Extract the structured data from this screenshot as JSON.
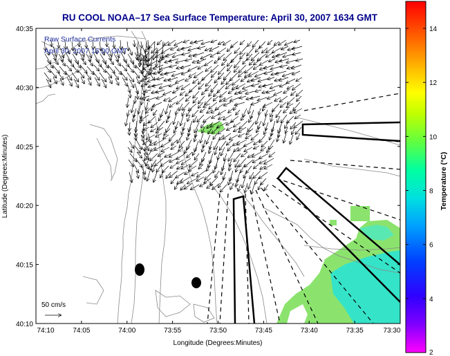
{
  "title": "RU COOL  NOAA–17  Sea Surface Temperature:  April 30, 2007 1634 GMT",
  "overlay": {
    "label1": "Raw Surface Currents",
    "label2": "April 30, 2007 16:00 GMT"
  },
  "axes": {
    "xlabel": "Longitude (Degrees:Minutes)",
    "ylabel": "Latitude (Degrees:Minutes)",
    "xticks": [
      "74:10",
      "74:05",
      "74:00",
      "73:55",
      "73:50",
      "73:45",
      "73:40",
      "73:35",
      "73:30"
    ],
    "yticks": [
      "40:35",
      "40:30",
      "40:25",
      "40:20",
      "40:15",
      "40:10"
    ]
  },
  "scale_label": "50 cm/s",
  "colorbar": {
    "label": "Temperature (°C)",
    "ticks": [
      "14",
      "12",
      "10",
      "8",
      "6",
      "4",
      "2"
    ],
    "min": 2,
    "max": 15
  },
  "colors": {
    "title": "#00008b",
    "overlay_text": "#1a2a9a",
    "sst_green": "#7fe67a",
    "sst_cyan": "#2fe0c0",
    "land_contour": "#888888"
  }
}
